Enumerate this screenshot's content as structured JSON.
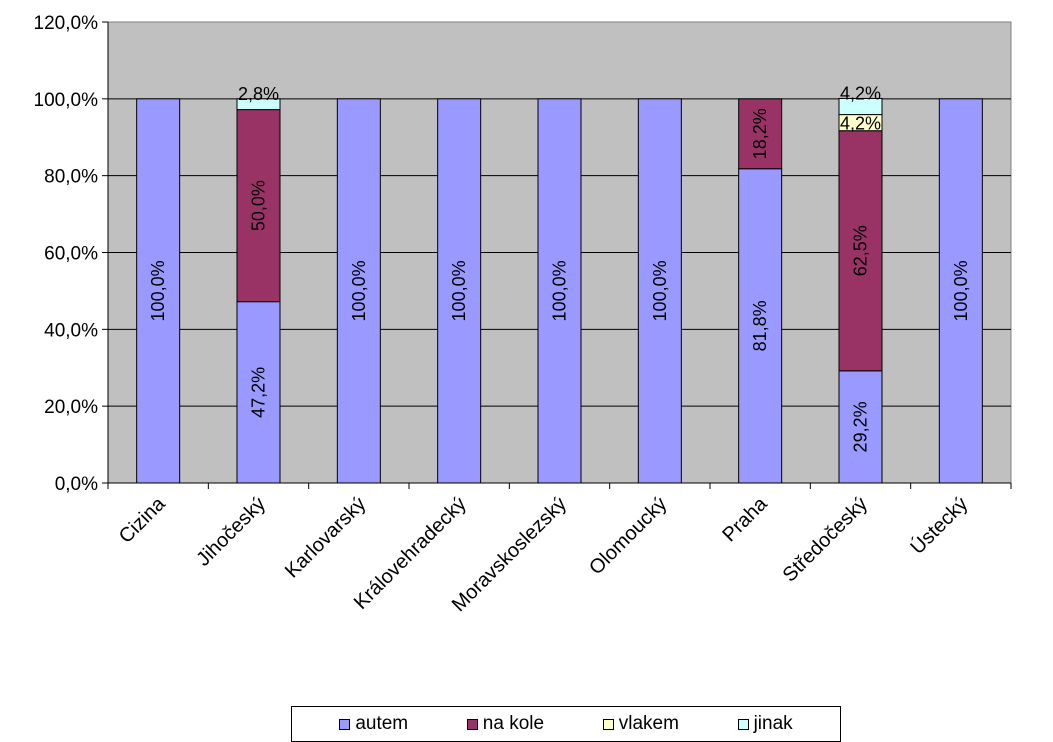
{
  "chart_data": {
    "type": "bar",
    "stacked": true,
    "categories": [
      "Cizina",
      "Jihočeský",
      "Karlovarský",
      "Královehradecký",
      "Moravskoslezský",
      "Olomoucký",
      "Praha",
      "Středočeský",
      "Ústecký"
    ],
    "series": [
      {
        "name": "autem",
        "color": "#9999FF",
        "values": [
          100.0,
          47.2,
          100.0,
          100.0,
          100.0,
          100.0,
          81.8,
          29.2,
          100.0
        ],
        "labels": [
          "100,0%",
          "47,2%",
          "100,0%",
          "100,0%",
          "100,0%",
          "100,0%",
          "81,8%",
          "29,2%",
          "100,0%"
        ]
      },
      {
        "name": "na kole",
        "color": "#993366",
        "values": [
          0,
          50.0,
          0,
          0,
          0,
          0,
          18.2,
          62.5,
          0
        ],
        "labels": [
          "",
          "50,0%",
          "",
          "",
          "",
          "",
          "18,2%",
          "62,5%",
          ""
        ]
      },
      {
        "name": "vlakem",
        "color": "#FFFFCC",
        "values": [
          0,
          0,
          0,
          0,
          0,
          0,
          0,
          4.2,
          0
        ],
        "labels": [
          "",
          "",
          "",
          "",
          "",
          "",
          "",
          "4,2%",
          ""
        ]
      },
      {
        "name": "jinak",
        "color": "#CCFFFF",
        "values": [
          0,
          2.8,
          0,
          0,
          0,
          0,
          0,
          4.2,
          0
        ],
        "labels": [
          "",
          "2,8%",
          "",
          "",
          "",
          "",
          "",
          "4,2%",
          ""
        ]
      }
    ],
    "ylim": [
      0,
      120
    ],
    "yticks": [
      "0,0%",
      "20,0%",
      "40,0%",
      "60,0%",
      "80,0%",
      "100,0%",
      "120,0%"
    ],
    "plot_background": "#C0C0C0",
    "grid": true,
    "legend_position": "bottom"
  }
}
